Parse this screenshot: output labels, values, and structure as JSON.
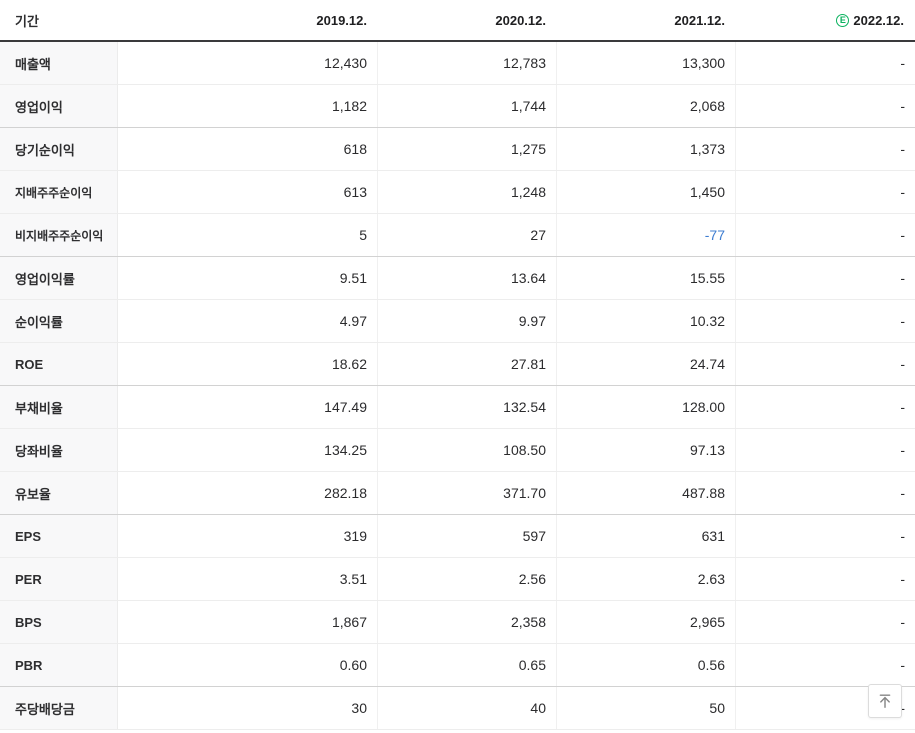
{
  "table": {
    "header": {
      "period_label": "기간",
      "columns": [
        "2019.12.",
        "2020.12.",
        "2021.12.",
        "2022.12."
      ],
      "estimate_column_index": 3,
      "estimate_icon_letter": "E"
    },
    "rows": [
      {
        "label": "매출액",
        "values": [
          "12,430",
          "12,783",
          "13,300",
          "-"
        ],
        "sub": false,
        "group_end": false
      },
      {
        "label": "영업이익",
        "values": [
          "1,182",
          "1,744",
          "2,068",
          "-"
        ],
        "sub": false,
        "group_end": true
      },
      {
        "label": "당기순이익",
        "values": [
          "618",
          "1,275",
          "1,373",
          "-"
        ],
        "sub": false,
        "group_end": false
      },
      {
        "label": "지배주주순이익",
        "values": [
          "613",
          "1,248",
          "1,450",
          "-"
        ],
        "sub": true,
        "group_end": false
      },
      {
        "label": "비지배주주순이익",
        "values": [
          "5",
          "27",
          "-77",
          "-"
        ],
        "sub": true,
        "group_end": true,
        "negative_cols": [
          2
        ]
      },
      {
        "label": "영업이익률",
        "values": [
          "9.51",
          "13.64",
          "15.55",
          "-"
        ],
        "sub": false,
        "group_end": false
      },
      {
        "label": "순이익률",
        "values": [
          "4.97",
          "9.97",
          "10.32",
          "-"
        ],
        "sub": false,
        "group_end": false
      },
      {
        "label": "ROE",
        "values": [
          "18.62",
          "27.81",
          "24.74",
          "-"
        ],
        "sub": false,
        "group_end": true
      },
      {
        "label": "부채비율",
        "values": [
          "147.49",
          "132.54",
          "128.00",
          "-"
        ],
        "sub": false,
        "group_end": false
      },
      {
        "label": "당좌비율",
        "values": [
          "134.25",
          "108.50",
          "97.13",
          "-"
        ],
        "sub": false,
        "group_end": false
      },
      {
        "label": "유보율",
        "values": [
          "282.18",
          "371.70",
          "487.88",
          "-"
        ],
        "sub": false,
        "group_end": true
      },
      {
        "label": "EPS",
        "values": [
          "319",
          "597",
          "631",
          "-"
        ],
        "sub": false,
        "group_end": false
      },
      {
        "label": "PER",
        "values": [
          "3.51",
          "2.56",
          "2.63",
          "-"
        ],
        "sub": false,
        "group_end": false
      },
      {
        "label": "BPS",
        "values": [
          "1,867",
          "2,358",
          "2,965",
          "-"
        ],
        "sub": false,
        "group_end": false
      },
      {
        "label": "PBR",
        "values": [
          "0.60",
          "0.65",
          "0.56",
          "-"
        ],
        "sub": false,
        "group_end": true
      },
      {
        "label": "주당배당금",
        "values": [
          "30",
          "40",
          "50",
          "-"
        ],
        "sub": false,
        "group_end": false
      }
    ]
  },
  "colors": {
    "negative_value": "#3e7dd1",
    "estimate_green": "#0bb25f",
    "header_border": "#3a3a3c",
    "label_background": "#f8f8f9"
  },
  "scroll_top_button": {
    "icon": "arrow-up-to-top"
  }
}
